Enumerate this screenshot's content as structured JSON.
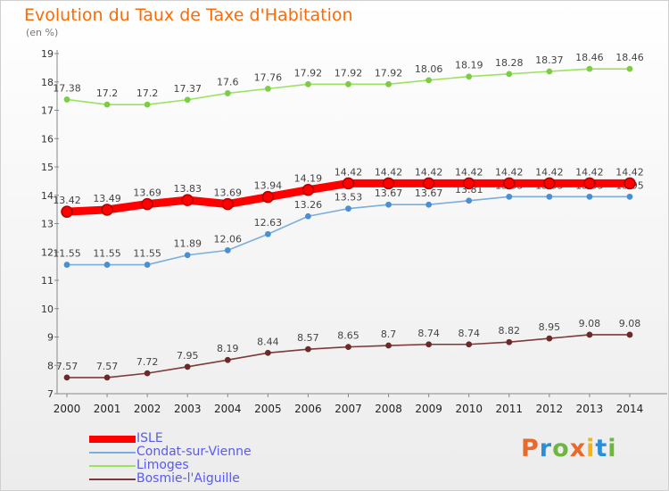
{
  "header": {
    "title": "Evolution du Taux de Taxe d'Habitation",
    "unit": "(en %)"
  },
  "brand": {
    "text": "Proxiti",
    "colors": [
      "#e8692b",
      "#2b8ed8",
      "#6fb63e",
      "#e8692b",
      "#f2b518",
      "#2b8ed8",
      "#6fb63e"
    ]
  },
  "chart_data": {
    "type": "line",
    "title": "Evolution du Taux de Taxe d'Habitation",
    "ylabel": "(en %)",
    "xlabel": "",
    "ylim": [
      7,
      19
    ],
    "yticks": [
      7,
      8,
      9,
      10,
      11,
      12,
      13,
      14,
      15,
      16,
      17,
      18,
      19
    ],
    "grid": false,
    "legend_position": "bottom-left",
    "x": [
      2000,
      2001,
      2002,
      2003,
      2004,
      2005,
      2006,
      2007,
      2008,
      2009,
      2010,
      2011,
      2012,
      2013,
      2014
    ],
    "series": [
      {
        "name": "Limoges",
        "color": "#9be35f",
        "marker": "#7ccd45",
        "values": [
          17.38,
          17.2,
          17.2,
          17.37,
          17.6,
          17.76,
          17.92,
          17.92,
          17.92,
          18.06,
          18.19,
          18.28,
          18.37,
          18.46,
          18.46
        ]
      },
      {
        "name": "Condat-sur-Vienne",
        "color": "#7aaedc",
        "marker": "#4a90d0",
        "values": [
          11.55,
          11.55,
          11.55,
          11.89,
          12.06,
          12.63,
          13.26,
          13.53,
          13.67,
          13.67,
          13.81,
          13.95,
          13.95,
          13.95,
          13.95
        ]
      },
      {
        "name": "Bosmie-l'Aiguille",
        "color": "#7d3a3a",
        "marker": "#6b2a2a",
        "values": [
          7.57,
          7.57,
          7.72,
          7.95,
          8.19,
          8.44,
          8.57,
          8.65,
          8.7,
          8.74,
          8.74,
          8.82,
          8.95,
          9.08,
          9.08
        ]
      },
      {
        "name": "ISLE",
        "color": "#ff0000",
        "marker": "#d40000",
        "highlight": true,
        "values": [
          13.42,
          13.49,
          13.69,
          13.83,
          13.69,
          13.94,
          14.19,
          14.42,
          14.42,
          14.42,
          14.42,
          14.42,
          14.42,
          14.42,
          14.42
        ]
      }
    ]
  },
  "legend": {
    "items": [
      {
        "label": "ISLE",
        "color": "#ff0000",
        "text_color": "#5a5aee",
        "thick": true
      },
      {
        "label": "Condat-sur-Vienne",
        "color": "#7aaedc",
        "text_color": "#5a5aee",
        "thick": false
      },
      {
        "label": "Limoges",
        "color": "#9be35f",
        "text_color": "#5a5aee",
        "thick": false
      },
      {
        "label": "Bosmie-l'Aiguille",
        "color": "#7d3a3a",
        "text_color": "#5a5aee",
        "thick": false
      }
    ]
  }
}
